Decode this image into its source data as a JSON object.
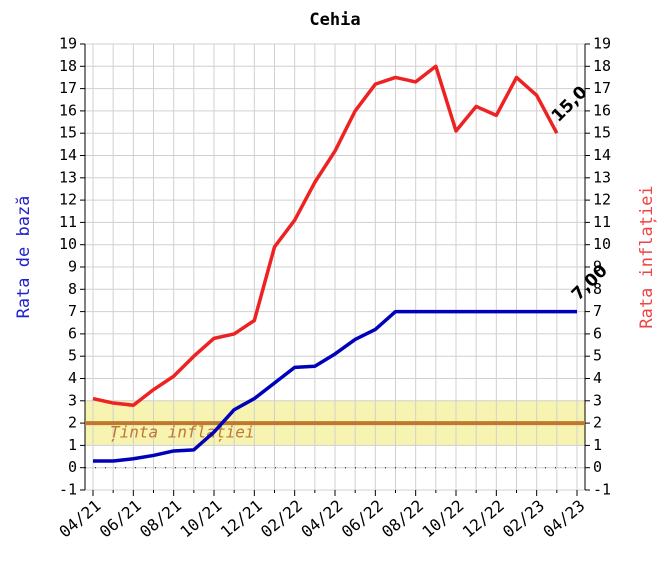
{
  "chart_data": {
    "type": "line",
    "title": "Cehia",
    "ylabel": "Rata de bază",
    "y2label": "Rata inflației",
    "categories": [
      "04/21",
      null,
      "06/21",
      null,
      "08/21",
      null,
      "10/21",
      null,
      "12/21",
      null,
      "02/22",
      null,
      "04/22",
      null,
      "06/22",
      null,
      "08/22",
      null,
      "10/22",
      null,
      "12/22",
      null,
      "02/23",
      null,
      "04/23"
    ],
    "series": [
      {
        "name": "Rata de bază",
        "color": "#0000bb",
        "axis": "y",
        "values": [
          0.3,
          0.3,
          0.4,
          0.55,
          0.75,
          0.8,
          1.6,
          2.6,
          3.1,
          3.8,
          4.5,
          4.55,
          5.1,
          5.75,
          6.2,
          7.0,
          7.0,
          7.0,
          7.0,
          7.0,
          7.0,
          7.0,
          7.0,
          7.0,
          7.0
        ],
        "value_labels": [
          null,
          null,
          null,
          null,
          null,
          null,
          null,
          null,
          null,
          null,
          null,
          null,
          null,
          null,
          null,
          null,
          null,
          null,
          null,
          null,
          null,
          null,
          null,
          null,
          "7,00"
        ]
      },
      {
        "name": "Rata inflației",
        "color": "#ee2222",
        "axis": "y2",
        "values": [
          3.1,
          2.9,
          2.8,
          3.5,
          4.1,
          5.0,
          5.8,
          6.0,
          6.6,
          9.9,
          11.1,
          12.8,
          14.2,
          16.0,
          17.2,
          17.5,
          17.3,
          18.0,
          15.1,
          16.2,
          15.8,
          17.5,
          16.7,
          15.0,
          null
        ],
        "value_labels": [
          null,
          null,
          null,
          null,
          null,
          null,
          null,
          null,
          null,
          null,
          null,
          null,
          null,
          null,
          null,
          null,
          null,
          null,
          null,
          null,
          null,
          null,
          null,
          "15,0",
          null
        ]
      }
    ],
    "target": {
      "label": "Ținta inflației",
      "value": 2,
      "low": 1,
      "high": 3,
      "color": "#c07830",
      "band_color": "#f7f3b0"
    },
    "ylim": [
      -1,
      19
    ],
    "yticks": [
      -1,
      0,
      1,
      2,
      3,
      4,
      5,
      6,
      7,
      8,
      9,
      10,
      11,
      12,
      13,
      14,
      15,
      16,
      17,
      18,
      19
    ],
    "y2lim": [
      -1,
      19
    ],
    "y2ticks": [
      -1,
      0,
      1,
      2,
      3,
      4,
      5,
      6,
      7,
      8,
      9,
      10,
      11,
      12,
      13,
      14,
      15,
      16,
      17,
      18,
      19
    ],
    "grid": true
  }
}
